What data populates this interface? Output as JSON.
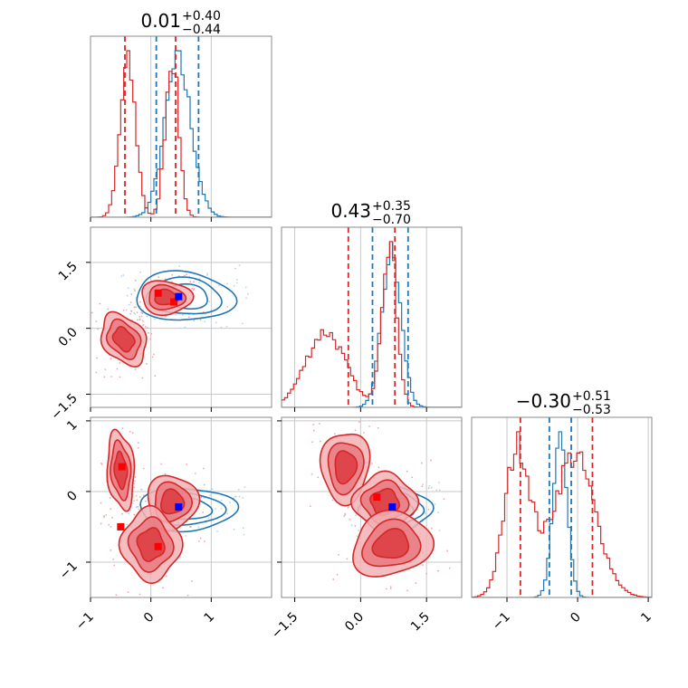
{
  "chart_data": {
    "type": "corner",
    "colors": {
      "red": "#d62728",
      "blue": "#1f77b4",
      "truth_red": "#ff0000",
      "truth_blue": "#0000ff",
      "grid": "#c8c8c8"
    },
    "titles": [
      {
        "value": "0.01",
        "plus": "+0.40",
        "minus": "−0.44"
      },
      {
        "value": "0.43",
        "plus": "+0.35",
        "minus": "−0.70"
      },
      {
        "value": "−0.30",
        "plus": "+0.51",
        "minus": "−0.53"
      }
    ],
    "params": [
      {
        "range": [
          -1.0,
          2.0
        ],
        "ticks": [
          -1,
          0,
          1
        ],
        "tick_labels": [
          "−1",
          "0",
          "1"
        ]
      },
      {
        "range": [
          -1.8,
          2.3
        ],
        "ticks": [
          -1.5,
          0,
          1.5
        ],
        "tick_labels": [
          "−1.5",
          "0.0",
          "1.5"
        ]
      },
      {
        "range": [
          -1.5,
          1.05
        ],
        "ticks": [
          -1,
          0,
          1
        ],
        "tick_labels": [
          "−1",
          "0",
          "1"
        ]
      }
    ],
    "quantiles": {
      "red": [
        [
          -0.43,
          0.41
        ],
        [
          -0.28,
          0.78
        ],
        [
          -0.81,
          0.21
        ]
      ],
      "blue": [
        [
          0.09,
          0.79
        ],
        [
          0.27,
          1.08
        ],
        [
          -0.4,
          -0.09
        ]
      ]
    },
    "truths": {
      "red": [
        [
          0.12,
          0.8
        ],
        [
          0.38,
          0.6
        ],
        [
          -0.5,
          -0.5
        ],
        [
          -0.48,
          0.35
        ],
        [
          0.12,
          -0.78
        ],
        [
          0.37,
          -0.08
        ]
      ],
      "blue": [
        [
          0.46,
          0.72
        ]
      ]
    },
    "hist_red": [
      {
        "mus": [
          -0.38,
          0.35
        ],
        "sds": [
          0.13,
          0.11
        ],
        "ws": [
          1.0,
          1.05
        ]
      },
      {
        "mus": [
          -0.8,
          0.65
        ],
        "sds": [
          0.45,
          0.17
        ],
        "ws": [
          0.45,
          1.0
        ]
      },
      {
        "mus": [
          -0.85,
          -0.05
        ],
        "sds": [
          0.18,
          0.3
        ],
        "ws": [
          1.0,
          0.95
        ]
      }
    ],
    "hist_blue": [
      {
        "mus": [
          0.45
        ],
        "sds": [
          0.22
        ],
        "ws": [
          1.0
        ]
      },
      {
        "mus": [
          0.7
        ],
        "sds": [
          0.22
        ],
        "ws": [
          1.0
        ]
      },
      {
        "mus": [
          -0.25
        ],
        "sds": [
          0.1
        ],
        "ws": [
          1.0
        ]
      }
    ]
  }
}
